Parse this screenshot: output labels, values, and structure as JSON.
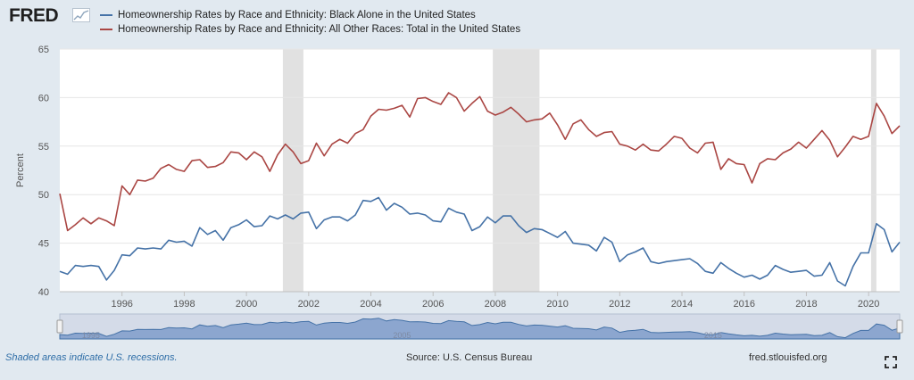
{
  "header": {
    "logo": "FRED",
    "logo_mark_icon": "fred-chart-icon"
  },
  "legend": [
    {
      "label": "Homeownership Rates by Race and Ethnicity: Black Alone in the United States",
      "color": "#4572a7"
    },
    {
      "label": "Homeownership Rates by Race and Ethnicity: All Other Races: Total in the United States",
      "color": "#aa4643"
    }
  ],
  "footer": {
    "recession_note": "Shaded areas indicate U.S. recessions.",
    "source": "Source: U.S. Census Bureau",
    "site": "fred.stlouisfed.org",
    "fullscreen_icon": "fullscreen-icon"
  },
  "navigator": {
    "labels": [
      "1995",
      "2005",
      "2015"
    ]
  },
  "chart_data": {
    "type": "line",
    "ylabel": "Percent",
    "xlabel": "",
    "xlim": [
      1994.0,
      2021.0
    ],
    "ylim": [
      40,
      65
    ],
    "yticks": [
      40,
      45,
      50,
      55,
      60,
      65
    ],
    "xticks": [
      1996,
      1998,
      2000,
      2002,
      2004,
      2006,
      2008,
      2010,
      2012,
      2014,
      2016,
      2018,
      2020
    ],
    "grid": "horizontal",
    "legend_position": "top",
    "recessions": [
      [
        2001.17,
        2001.83
      ],
      [
        2007.92,
        2009.42
      ],
      [
        2020.08,
        2020.25
      ]
    ],
    "x": [
      1994.0,
      1994.25,
      1994.5,
      1994.75,
      1995.0,
      1995.25,
      1995.5,
      1995.75,
      1996.0,
      1996.25,
      1996.5,
      1996.75,
      1997.0,
      1997.25,
      1997.5,
      1997.75,
      1998.0,
      1998.25,
      1998.5,
      1998.75,
      1999.0,
      1999.25,
      1999.5,
      1999.75,
      2000.0,
      2000.25,
      2000.5,
      2000.75,
      2001.0,
      2001.25,
      2001.5,
      2001.75,
      2002.0,
      2002.25,
      2002.5,
      2002.75,
      2003.0,
      2003.25,
      2003.5,
      2003.75,
      2004.0,
      2004.25,
      2004.5,
      2004.75,
      2005.0,
      2005.25,
      2005.5,
      2005.75,
      2006.0,
      2006.25,
      2006.5,
      2006.75,
      2007.0,
      2007.25,
      2007.5,
      2007.75,
      2008.0,
      2008.25,
      2008.5,
      2008.75,
      2009.0,
      2009.25,
      2009.5,
      2009.75,
      2010.0,
      2010.25,
      2010.5,
      2010.75,
      2011.0,
      2011.25,
      2011.5,
      2011.75,
      2012.0,
      2012.25,
      2012.5,
      2012.75,
      2013.0,
      2013.25,
      2013.5,
      2013.75,
      2014.0,
      2014.25,
      2014.5,
      2014.75,
      2015.0,
      2015.25,
      2015.5,
      2015.75,
      2016.0,
      2016.25,
      2016.5,
      2016.75,
      2017.0,
      2017.25,
      2017.5,
      2017.75,
      2018.0,
      2018.25,
      2018.5,
      2018.75,
      2019.0,
      2019.25,
      2019.5,
      2019.75,
      2020.0,
      2020.25,
      2020.5,
      2020.75,
      2021.0
    ],
    "series": [
      {
        "name": "Homeownership Rates by Race and Ethnicity: Black Alone in the United States",
        "color": "#4572a7",
        "values": [
          42.1,
          41.8,
          42.7,
          42.6,
          42.7,
          42.6,
          41.2,
          42.2,
          43.8,
          43.7,
          44.5,
          44.4,
          44.5,
          44.4,
          45.3,
          45.1,
          45.2,
          44.7,
          46.6,
          45.9,
          46.3,
          45.3,
          46.6,
          46.9,
          47.4,
          46.7,
          46.8,
          47.8,
          47.5,
          47.9,
          47.5,
          48.1,
          48.2,
          46.5,
          47.4,
          47.7,
          47.7,
          47.3,
          47.9,
          49.4,
          49.3,
          49.7,
          48.4,
          49.1,
          48.7,
          48.0,
          48.1,
          47.9,
          47.3,
          47.2,
          48.6,
          48.2,
          48.0,
          46.3,
          46.7,
          47.7,
          47.1,
          47.8,
          47.8,
          46.8,
          46.1,
          46.5,
          46.4,
          46.0,
          45.6,
          46.2,
          45.0,
          44.9,
          44.8,
          44.2,
          45.6,
          45.1,
          43.1,
          43.8,
          44.1,
          44.5,
          43.1,
          42.9,
          43.1,
          43.2,
          43.3,
          43.4,
          42.9,
          42.1,
          41.9,
          43.0,
          42.4,
          41.9,
          41.5,
          41.7,
          41.3,
          41.7,
          42.7,
          42.3,
          42.0,
          42.1,
          42.2,
          41.6,
          41.7,
          43.0,
          41.1,
          40.6,
          42.6,
          44.0,
          44.0,
          47.0,
          46.4,
          44.1,
          45.1
        ]
      },
      {
        "name": "Homeownership Rates by Race and Ethnicity: All Other Races: Total in the United States",
        "color": "#aa4643",
        "values": [
          50.1,
          46.3,
          46.9,
          47.6,
          47.0,
          47.6,
          47.3,
          46.8,
          50.9,
          50.0,
          51.5,
          51.4,
          51.7,
          52.7,
          53.1,
          52.6,
          52.4,
          53.5,
          53.6,
          52.8,
          52.9,
          53.3,
          54.4,
          54.3,
          53.6,
          54.4,
          53.9,
          52.4,
          54.1,
          55.2,
          54.4,
          53.2,
          53.5,
          55.3,
          54.0,
          55.2,
          55.7,
          55.3,
          56.3,
          56.7,
          58.1,
          58.8,
          58.7,
          58.9,
          59.2,
          58.0,
          59.9,
          60.0,
          59.6,
          59.3,
          60.5,
          60.0,
          58.6,
          59.4,
          60.1,
          58.6,
          58.2,
          58.5,
          59.0,
          58.3,
          57.5,
          57.7,
          57.8,
          58.4,
          57.2,
          55.7,
          57.3,
          57.7,
          56.7,
          56.0,
          56.4,
          56.5,
          55.2,
          55.0,
          54.6,
          55.2,
          54.6,
          54.5,
          55.2,
          56.0,
          55.8,
          54.8,
          54.3,
          55.3,
          55.4,
          52.6,
          53.7,
          53.2,
          53.1,
          51.2,
          53.2,
          53.7,
          53.6,
          54.3,
          54.7,
          55.4,
          54.8,
          55.7,
          56.6,
          55.6,
          53.9,
          54.9,
          56.0,
          55.7,
          56.0,
          59.4,
          58.1,
          56.3,
          57.1
        ]
      }
    ]
  }
}
